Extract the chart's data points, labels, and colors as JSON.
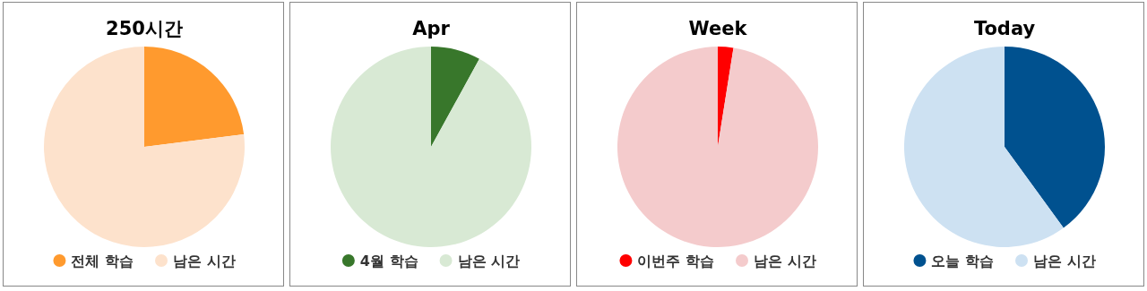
{
  "chart_data": [
    {
      "type": "pie",
      "title": "250시간",
      "categories": [
        "전체 학습",
        "남은 시간"
      ],
      "values": [
        23,
        77
      ],
      "colors": [
        "#ff9a2e",
        "#fde2cc"
      ],
      "legend": "bottom"
    },
    {
      "type": "pie",
      "title": "Apr",
      "categories": [
        "4월 학습",
        "남은 시간"
      ],
      "values": [
        8,
        92
      ],
      "colors": [
        "#38772b",
        "#d8e9d4"
      ],
      "legend": "bottom"
    },
    {
      "type": "pie",
      "title": "Week",
      "categories": [
        "이번주 학습",
        "남은 시간"
      ],
      "values": [
        2.5,
        97.5
      ],
      "colors": [
        "#ff0000",
        "#f4cbcc"
      ],
      "legend": "bottom"
    },
    {
      "type": "pie",
      "title": "Today",
      "categories": [
        "오늘 학습",
        "남은 시간"
      ],
      "values": [
        40,
        60
      ],
      "colors": [
        "#00518f",
        "#cde1f2"
      ],
      "legend": "bottom"
    }
  ]
}
